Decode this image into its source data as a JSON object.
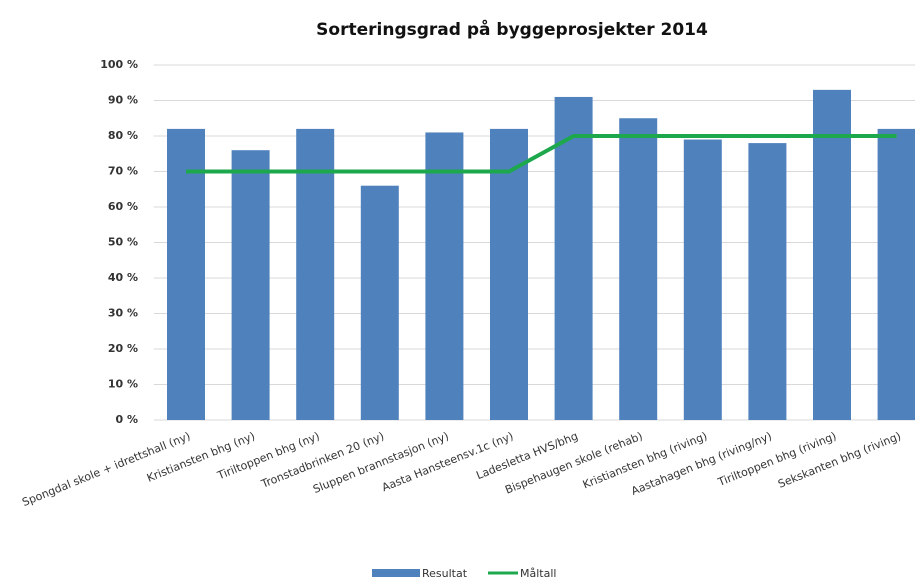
{
  "chart_data": {
    "type": "bar",
    "title": "Sorteringsgrad på byggeprosjekter 2014",
    "categories": [
      "Spongdal skole + idrettshall (ny)",
      "Kristiansten bhg (ny)",
      "Tiriltoppen bhg (ny)",
      "Tronstadbrinken 20 (ny)",
      "Sluppen brannstasjon (ny)",
      "Aasta Hansteensv.1c (ny)",
      "Ladesletta HVS/bhg",
      "Bispehaugen skole (rehab)",
      "Kristiansten bhg (riving)",
      "Aastahagen bhg (riving/ny)",
      "Tiriltoppen bhg (riving)",
      "Sekskanten bhg (riving)"
    ],
    "series": [
      {
        "name": "Resultat",
        "type": "bar",
        "color": "#4f81bd",
        "values": [
          82,
          76,
          82,
          66,
          81,
          82,
          91,
          85,
          79,
          78,
          93,
          82
        ]
      },
      {
        "name": "Måltall",
        "type": "line",
        "color": "#1ea84d",
        "values": [
          70,
          70,
          70,
          70,
          70,
          70,
          80,
          80,
          80,
          80,
          80,
          80
        ]
      }
    ],
    "ylim": [
      0,
      100
    ],
    "yticks": [
      {
        "value": 0,
        "label": "0 %"
      },
      {
        "value": 10,
        "label": "10 %"
      },
      {
        "value": 20,
        "label": "20 %"
      },
      {
        "value": 30,
        "label": "30 %"
      },
      {
        "value": 40,
        "label": "40 %"
      },
      {
        "value": 50,
        "label": "50 %"
      },
      {
        "value": 60,
        "label": "60 %"
      },
      {
        "value": 70,
        "label": "70 %"
      },
      {
        "value": 80,
        "label": "80 %"
      },
      {
        "value": 90,
        "label": "90 %"
      },
      {
        "value": 100,
        "label": "100 %"
      }
    ],
    "grid": true,
    "legend": "bottom"
  }
}
